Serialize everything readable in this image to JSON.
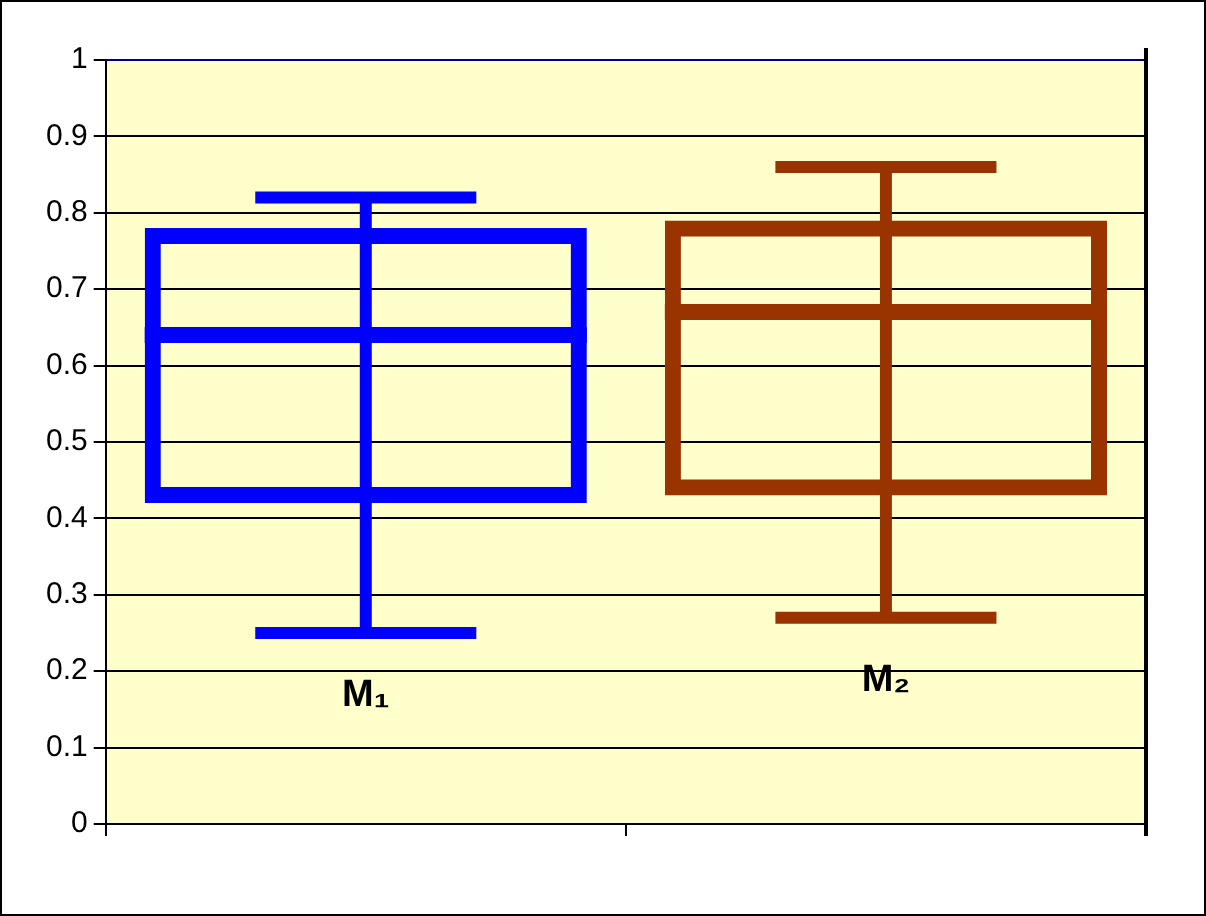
{
  "chart_data": {
    "type": "box",
    "categories": [
      "M₁",
      "M₂"
    ],
    "boxes": [
      {
        "low": 0.25,
        "q1": 0.42,
        "median": 0.64,
        "q3": 0.78,
        "high": 0.82
      },
      {
        "low": 0.27,
        "q1": 0.43,
        "median": 0.67,
        "q3": 0.79,
        "high": 0.86
      }
    ],
    "colors": [
      "#0000ff",
      "#993300"
    ],
    "ylim": [
      0,
      1
    ],
    "yticks": [
      0,
      0.1,
      0.2,
      0.3,
      0.4,
      0.5,
      0.6,
      0.7,
      0.8,
      0.9,
      1
    ],
    "grid": "y",
    "tick_labels": "y"
  }
}
